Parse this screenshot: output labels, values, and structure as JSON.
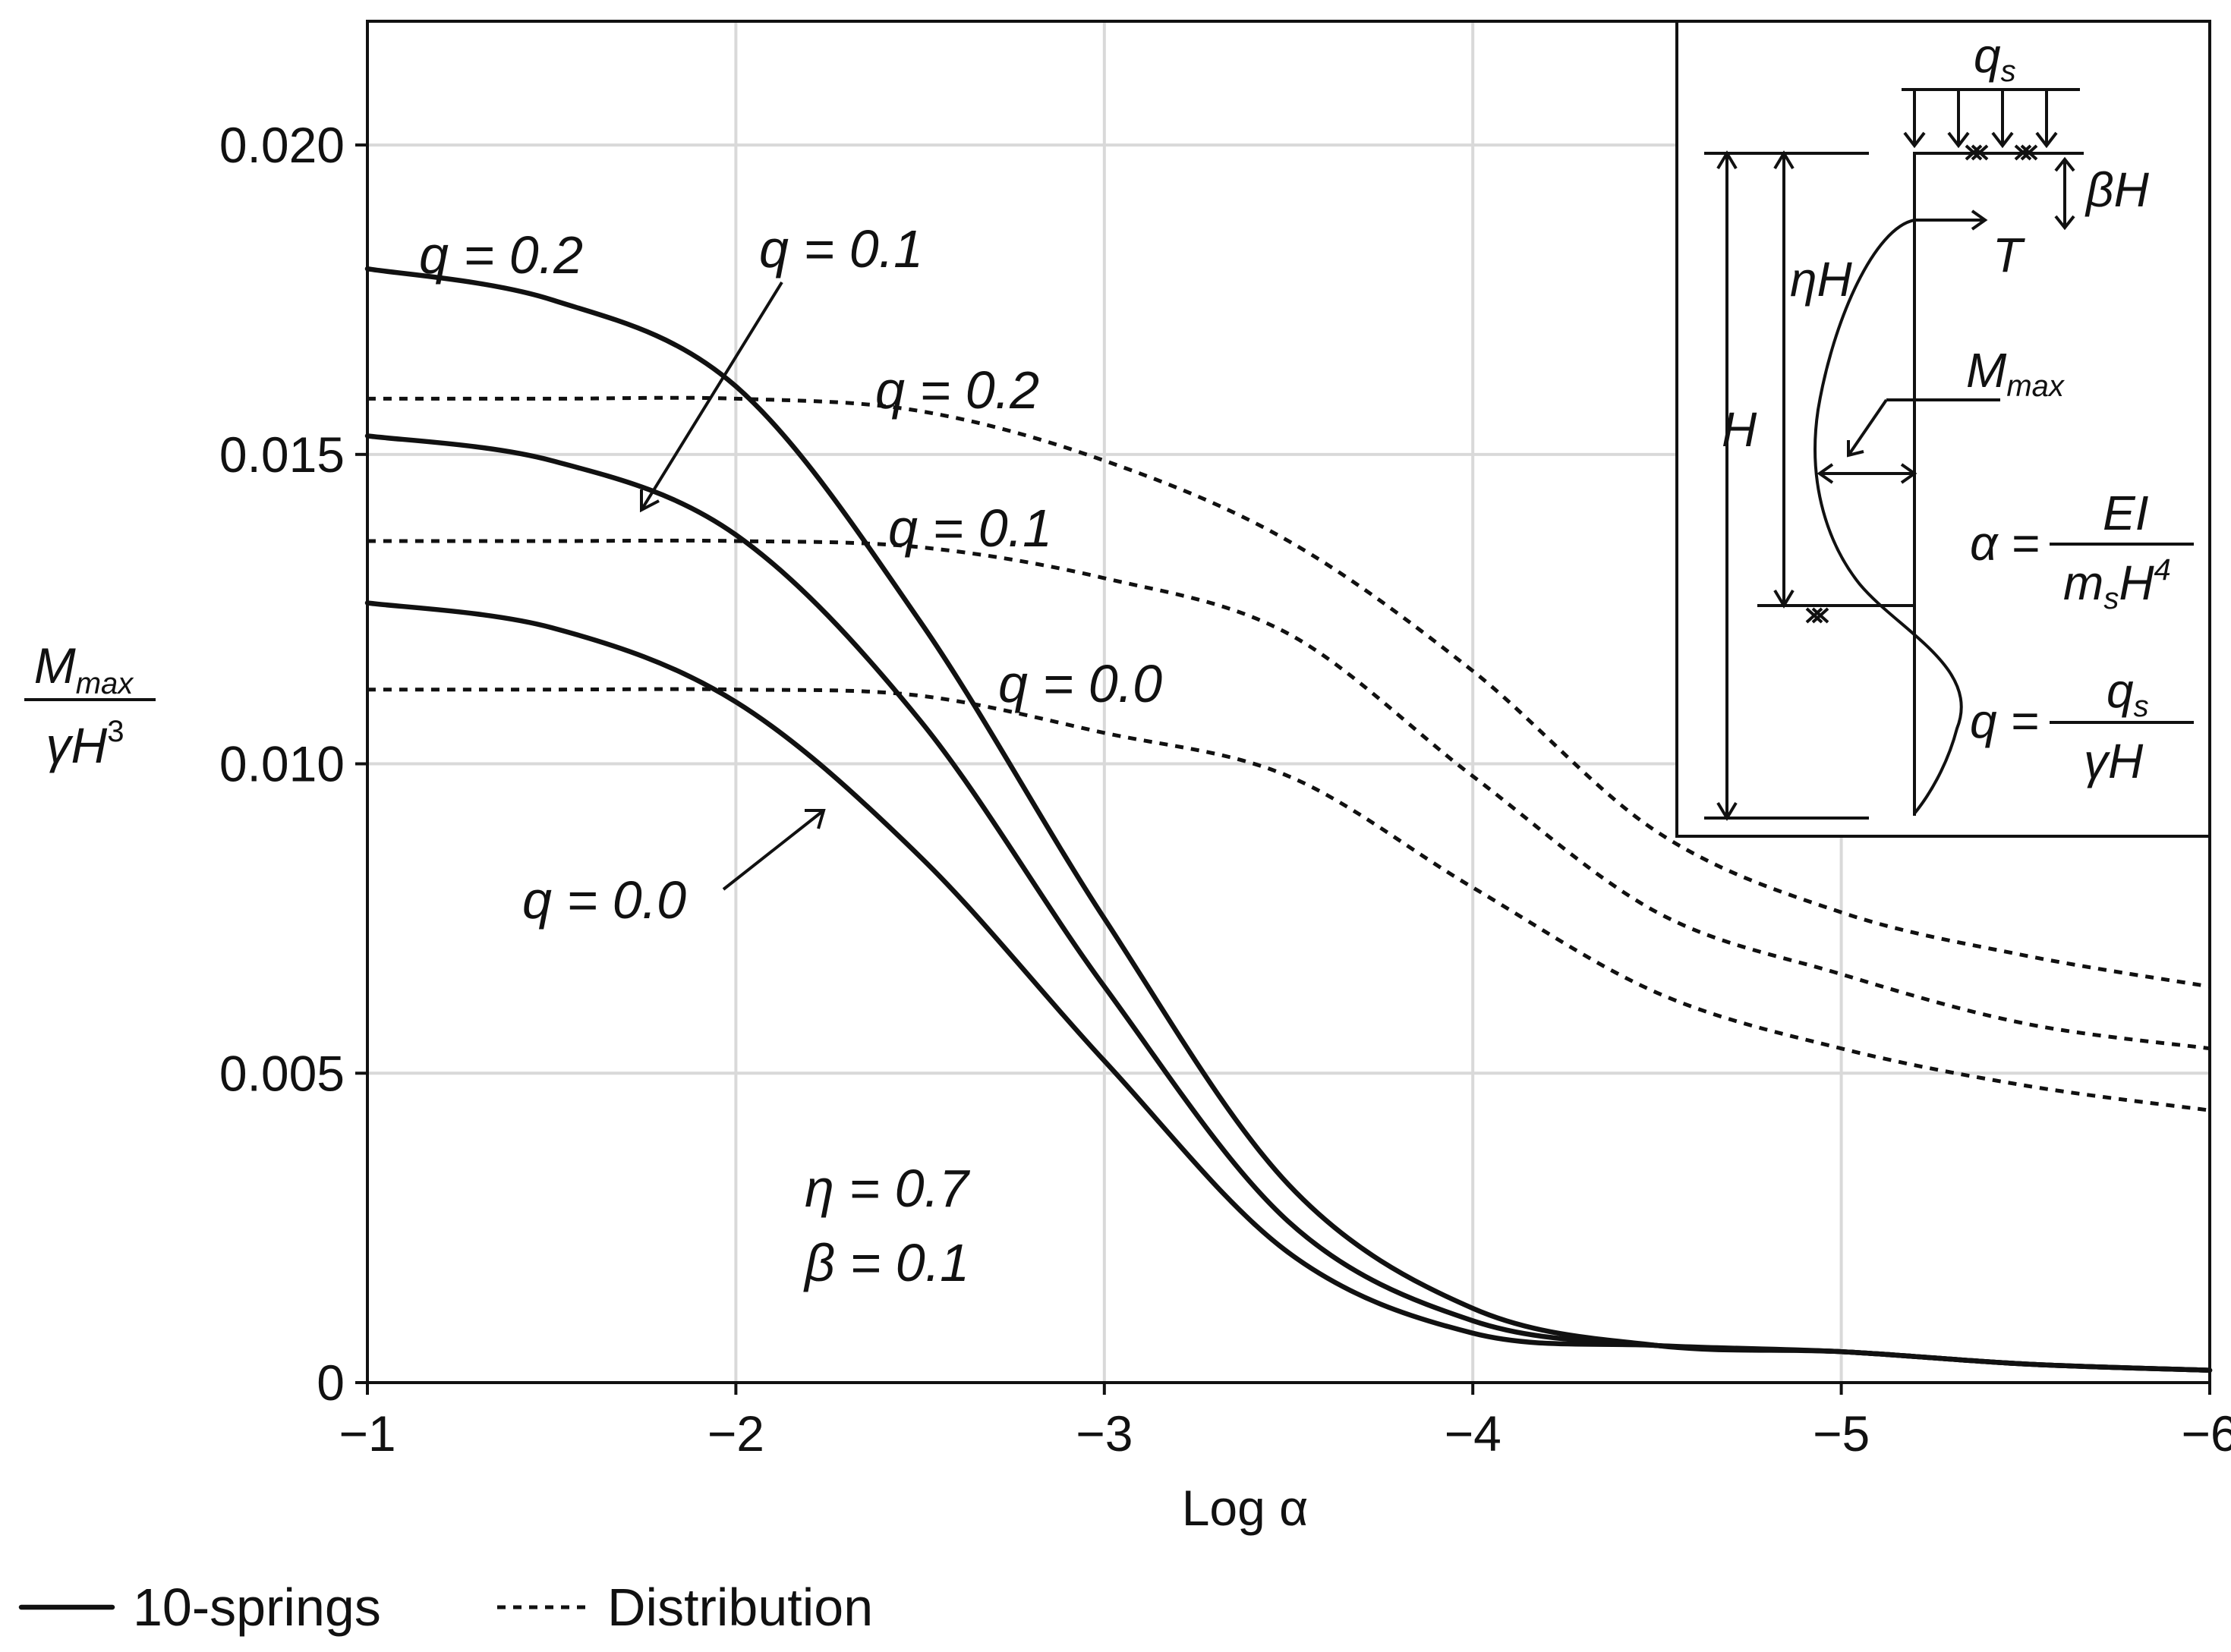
{
  "chart_data": {
    "type": "line",
    "title": "",
    "xlabel": "Log α",
    "ylabel_numerator": "M",
    "ylabel_numerator_sub": "max",
    "ylabel_denominator": "γH",
    "ylabel_denominator_sup": "3",
    "xlim": [
      -1,
      -6
    ],
    "ylim": [
      0,
      0.022
    ],
    "xticks": [
      -1,
      -2,
      -3,
      -4,
      -5,
      -6
    ],
    "xtick_labels": [
      "−1",
      "−2",
      "−3",
      "−4",
      "−5",
      "−6"
    ],
    "yticks": [
      0,
      0.005,
      0.01,
      0.015,
      0.02
    ],
    "ytick_labels": [
      "0",
      "0.005",
      "0.010",
      "0.015",
      "0.020"
    ],
    "grid": true,
    "x": [
      -1.0,
      -1.5,
      -2.0,
      -2.5,
      -3.0,
      -3.5,
      -4.0,
      -4.5,
      -5.0,
      -5.5,
      -6.0
    ],
    "series": [
      {
        "name": "10-springs q = 0.2",
        "style": "solid",
        "values": [
          0.018,
          0.0175,
          0.0161,
          0.0123,
          0.0075,
          0.0032,
          0.0012,
          0.0006,
          0.0005,
          0.0003,
          0.0002
        ]
      },
      {
        "name": "10-springs q = 0.1",
        "style": "solid",
        "values": [
          0.0153,
          0.0149,
          0.0137,
          0.0107,
          0.0064,
          0.0026,
          0.001,
          0.0006,
          0.0005,
          0.0003,
          0.0002
        ]
      },
      {
        "name": "10-springs q = 0.0",
        "style": "solid",
        "values": [
          0.0126,
          0.0122,
          0.011,
          0.0085,
          0.0052,
          0.0021,
          0.0008,
          0.0006,
          0.0005,
          0.0003,
          0.0002
        ]
      },
      {
        "name": "Distribution q = 0.2",
        "style": "dashed",
        "values": [
          0.0159,
          0.0159,
          0.0159,
          0.0157,
          0.0149,
          0.0136,
          0.0115,
          0.0089,
          0.0076,
          0.0069,
          0.0064
        ]
      },
      {
        "name": "Distribution q = 0.1",
        "style": "dashed",
        "values": [
          0.0136,
          0.0136,
          0.0136,
          0.0135,
          0.013,
          0.0121,
          0.0098,
          0.0076,
          0.0066,
          0.0058,
          0.0054
        ]
      },
      {
        "name": "Distribution q = 0.0",
        "style": "dashed",
        "values": [
          0.0112,
          0.0112,
          0.0112,
          0.0111,
          0.0105,
          0.0098,
          0.008,
          0.0063,
          0.0054,
          0.0048,
          0.0044
        ]
      }
    ],
    "annotations": {
      "s_q02": "q = 0.2",
      "s_q01": "q = 0.1",
      "s_q00": "q = 0.0",
      "d_q02": "q = 0.2",
      "d_q01": "q = 0.1",
      "d_q00": "q = 0.0",
      "eta": "η = 0.7",
      "beta": "β = 0.1"
    },
    "legend": [
      {
        "label": "10-springs",
        "style": "solid"
      },
      {
        "label": "Distribution",
        "style": "dashed"
      }
    ],
    "legend_position": "bottom-left",
    "inset": {
      "qs": "q",
      "qs_sub": "s",
      "betaH": "βH",
      "T": "T",
      "etaH": "ηH",
      "Mmax": "M",
      "Mmax_sub": "max",
      "H": "H",
      "alpha_lhs": "α =",
      "alpha_num": "EI",
      "alpha_den": "m",
      "alpha_den_sub": "s",
      "alpha_den_rest": "H",
      "alpha_den_sup": "4",
      "q_lhs": "q =",
      "q_num": "q",
      "q_num_sub": "s",
      "q_den": "γH"
    }
  }
}
